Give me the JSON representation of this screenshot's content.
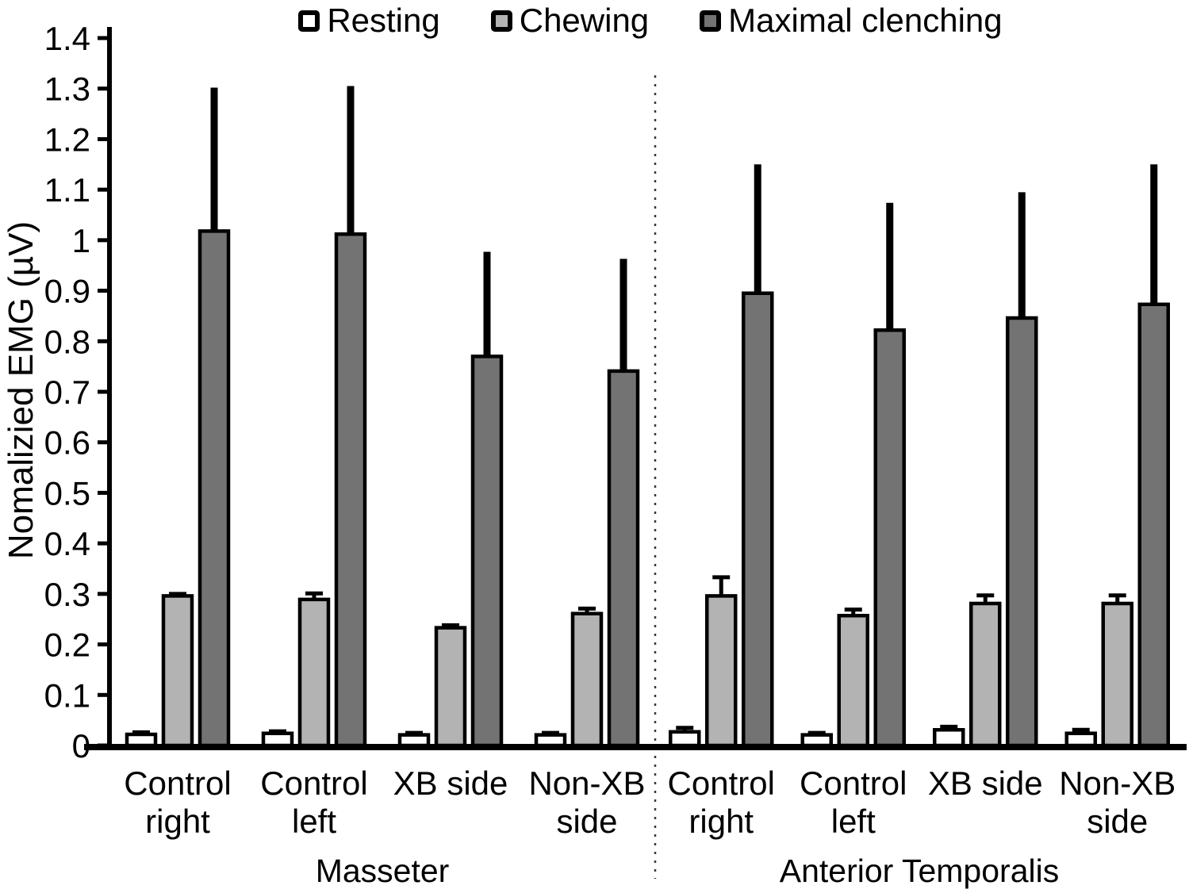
{
  "chart_data": {
    "type": "bar",
    "title": "",
    "ylabel": "Nomalizied EMG (µV)",
    "xlabel": "",
    "ylim": [
      0,
      1.4
    ],
    "ytick_interval": 0.1,
    "ytick_labels": [
      "0",
      "0.1",
      "0.2",
      "0.3",
      "0.4",
      "0.5",
      "0.6",
      "0.7",
      "0.8",
      "0.9",
      "1",
      "1.1",
      "1.2",
      "1.3",
      "1.4"
    ],
    "grid": false,
    "legend_position": "top",
    "axis_color": "#000000",
    "divider_style": "dotted vertical line between muscle sections",
    "sections": [
      {
        "label": "Masseter",
        "categories": [
          [
            "Control",
            "right"
          ],
          [
            "Control",
            "left"
          ],
          [
            "XB side"
          ],
          [
            "Non-XB",
            "side"
          ]
        ]
      },
      {
        "label": "Anterior Temporalis",
        "categories": [
          [
            "Control",
            "right"
          ],
          [
            "Control",
            "left"
          ],
          [
            "XB side"
          ],
          [
            "Non-XB",
            "side"
          ]
        ]
      }
    ],
    "series": [
      {
        "name": "Resting",
        "color": "#ffffff",
        "values": [
          0.022,
          0.024,
          0.021,
          0.021,
          0.027,
          0.021,
          0.031,
          0.024
        ],
        "errors_plus": [
          0.004,
          0.004,
          0.004,
          0.004,
          0.008,
          0.004,
          0.006,
          0.007
        ]
      },
      {
        "name": "Chewing",
        "color": "#b3b3b3",
        "values": [
          0.296,
          0.289,
          0.233,
          0.261,
          0.296,
          0.257,
          0.281,
          0.281
        ],
        "errors_plus": [
          0.004,
          0.012,
          0.005,
          0.01,
          0.037,
          0.012,
          0.016,
          0.016
        ]
      },
      {
        "name": "Maximal clenching",
        "color": "#737373",
        "values": [
          1.018,
          1.012,
          0.77,
          0.741,
          0.895,
          0.822,
          0.846,
          0.873
        ],
        "errors_plus": [
          0.284,
          0.293,
          0.207,
          0.222,
          0.255,
          0.252,
          0.249,
          0.277
        ]
      }
    ]
  }
}
